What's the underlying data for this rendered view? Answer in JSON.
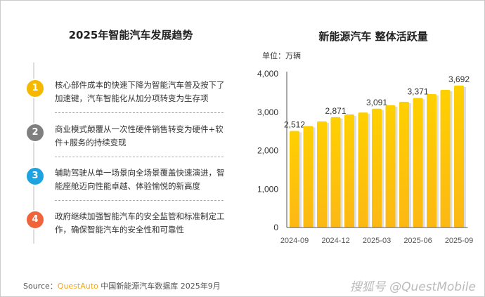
{
  "left": {
    "title": "2025年智能汽车发展趋势",
    "items": [
      {
        "num": "1",
        "color": "#f5b800",
        "text": "核心部件成本的快速下降为智能汽车普及按下了加速键，汽车智能化从加分项转变为生存项"
      },
      {
        "num": "2",
        "color": "#7f7f7f",
        "text": "商业模式颠覆从一次性硬件销售转变为硬件+软件+服务的持续变现"
      },
      {
        "num": "3",
        "color": "#1fa3e0",
        "text": "辅助驾驶从单一场景向全场景覆盖快速演进，智能座舱迈向性能卓越、体验愉悦的新高度"
      },
      {
        "num": "4",
        "color": "#f0643c",
        "text": "政府继续加强智能汽车的安全监管和标准制定工作，确保智能汽车的安全性和可靠性"
      }
    ]
  },
  "footer": {
    "source_label": "Source：",
    "brand": "QuestAuto",
    "source_text": " 中国新能源汽车数据库 2025年9月",
    "watermark": "搜狐号 @QuestMobile"
  },
  "chart_data": {
    "type": "bar",
    "title": "新能源汽车 整体活跃量",
    "unit": "单位：万辆",
    "categories": [
      "2024-09",
      "2024-10",
      "2024-11",
      "2024-12",
      "2025-01",
      "2025-02",
      "2025-03",
      "2025-04",
      "2025-05",
      "2025-06",
      "2025-07",
      "2025-08",
      "2025-09"
    ],
    "values": [
      2512,
      2640,
      2760,
      2871,
      2940,
      2990,
      3091,
      3180,
      3270,
      3371,
      3470,
      3580,
      3692
    ],
    "data_labels": {
      "0": "2,512",
      "3": "2,871",
      "6": "3,091",
      "9": "3,371",
      "12": "3,692"
    },
    "xtick_labels": [
      "2024-09",
      "2024-12",
      "2025-03",
      "2025-06",
      "2025-09"
    ],
    "yticks": [
      0,
      1000,
      2000,
      3000,
      4000
    ],
    "ytick_labels": [
      "0",
      "1,000",
      "2,000",
      "3,000",
      "4,000"
    ],
    "ylim": [
      0,
      4000
    ],
    "bar_color": "#fcc000",
    "grid": false
  }
}
